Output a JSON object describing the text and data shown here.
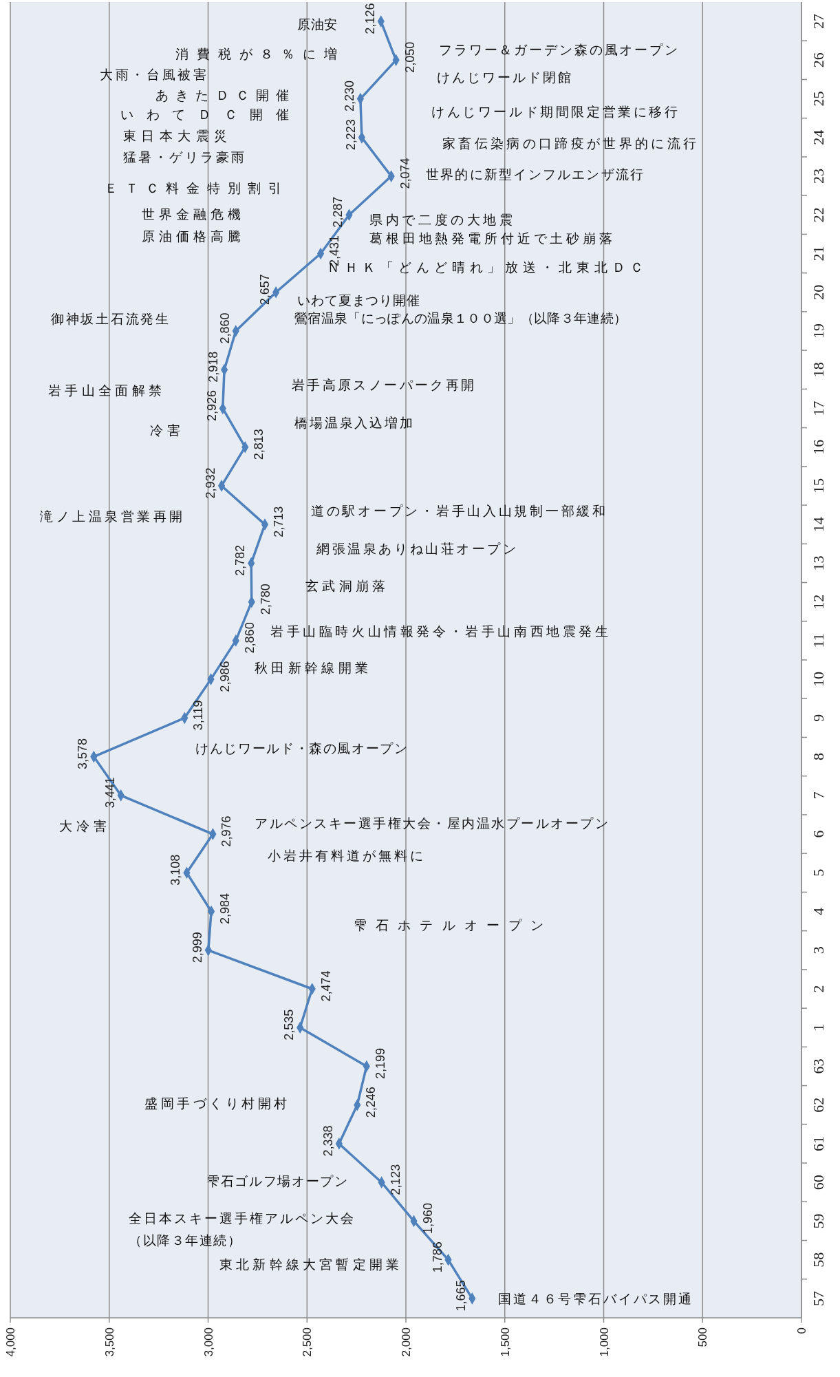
{
  "chart_data": {
    "type": "line",
    "orientation": "horizontal",
    "categories": [
      "27",
      "26",
      "25",
      "24",
      "23",
      "22",
      "21",
      "20",
      "19",
      "18",
      "17",
      "16",
      "15",
      "14",
      "13",
      "12",
      "11",
      "10",
      "9",
      "8",
      "7",
      "6",
      "5",
      "4",
      "3",
      "2",
      "1",
      "63",
      "62",
      "61",
      "60",
      "59",
      "58",
      "57"
    ],
    "series": [
      {
        "color": "#4f81bd",
        "values": [
          2126,
          2050,
          2230,
          2223,
          2074,
          2287,
          2431,
          2657,
          2860,
          2918,
          2926,
          2813,
          2932,
          2713,
          2782,
          2780,
          2860,
          2986,
          3119,
          3578,
          3441,
          2976,
          3108,
          2984,
          2999,
          2474,
          2535,
          2199,
          2246,
          2338,
          2123,
          1960,
          1786,
          1665
        ],
        "value_labels": [
          "2,126",
          "2,050",
          "2,230",
          "2,223",
          "2,074",
          "2,287",
          "2,431",
          "2,657",
          "2,860",
          "2,918",
          "2,926",
          "2,813",
          "2,932",
          "2,713",
          "2,782",
          "2,780",
          "2,860",
          "2,986",
          "3,119",
          "3,578",
          "3,441",
          "2,976",
          "3,108",
          "2,984",
          "2,999",
          "2,474",
          "2,535",
          "2,199",
          "2,246",
          "2,338",
          "2,123",
          "1,960",
          "1,786",
          "1,665"
        ]
      }
    ],
    "xlim": [
      4000,
      0
    ],
    "xticks": [
      {
        "value": 4000,
        "label": "4,000"
      },
      {
        "value": 3500,
        "label": "3,500"
      },
      {
        "value": 3000,
        "label": "3,000"
      },
      {
        "value": 2500,
        "label": "2,500"
      },
      {
        "value": 2000,
        "label": "2,000"
      },
      {
        "value": 1500,
        "label": "1,500"
      },
      {
        "value": 1000,
        "label": "1,000"
      },
      500,
      0
    ],
    "grid": "x",
    "marker": "diamond",
    "line_style": "solid",
    "annotations": [
      "原油安",
      "消費税が８％に増",
      "大雨・台風被害",
      "あきたＤＣ開催",
      "いわてＤＣ開催",
      "東日本大震災",
      "猛暑・ゲリラ豪雨",
      "ＥＴＣ料金特別割引",
      "世界金融危機",
      "原油価格高騰",
      "御神坂土石流発生",
      "フラワー＆ガーデン森の風オープン",
      "けんじワールド閉館",
      "けんじワールド期間限定営業に移行",
      "家畜伝染病の口蹄疫が世界的に流行",
      "世界的に新型インフルエンザ流行",
      "県内で二度の大地震",
      "葛根田地熱発電所付近で土砂崩落",
      "ＮＨＫ「どんど晴れ」放送・北東北ＤＣ",
      "いわて夏まつり開催",
      "鶯宿温泉「にっぽんの温泉１００選」（以降３年連続）",
      "岩手山全面解禁",
      "冷害",
      "滝ノ上温泉営業再開",
      "岩手高原スノーパーク再開",
      "橋場温泉入込増加",
      "道の駅オープン・岩手山入山規制一部緩和",
      "網張温泉ありね山荘オープン",
      "玄武洞崩落",
      "岩手山臨時火山情報発令・岩手山南西地震発生",
      "秋田新幹線開業",
      "けんじワールド・森の風オープン",
      "大冷害",
      "アルペンスキー選手権大会・屋内温水プールオープン",
      "小岩井有料道が無料に",
      "雫石ホテルオープン",
      "盛岡手づくり村開村",
      "雫石ゴルフ場オープン",
      "全日本スキー選手権アルペン大会",
      "（以降３年連続）",
      "東北新幹線大宮暫定開業",
      "国道４６号雫石バイパス開通"
    ]
  }
}
